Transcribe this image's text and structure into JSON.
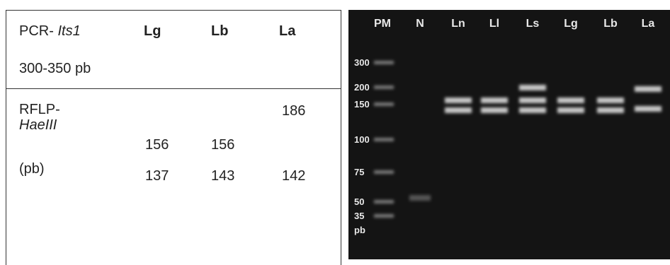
{
  "table": {
    "header": {
      "label": "PCR- ",
      "label_italic": "Its1",
      "size": "300-350 pb",
      "columns": [
        "Lg",
        "Lb",
        "La"
      ]
    },
    "row": {
      "label": "RFLP-",
      "enzyme": "HaeIII",
      "unit": "(pb)",
      "fragments": [
        [
          156,
          137
        ],
        [
          156,
          143
        ],
        [
          186,
          142
        ]
      ]
    }
  },
  "gel": {
    "lanes": [
      "PM",
      "N",
      "Ln",
      "Ll",
      "Ls",
      "Lg",
      "Lb",
      "La"
    ],
    "ladder": [
      300,
      200,
      150,
      100,
      75,
      50,
      35
    ],
    "ladder_unit": "pb"
  }
}
